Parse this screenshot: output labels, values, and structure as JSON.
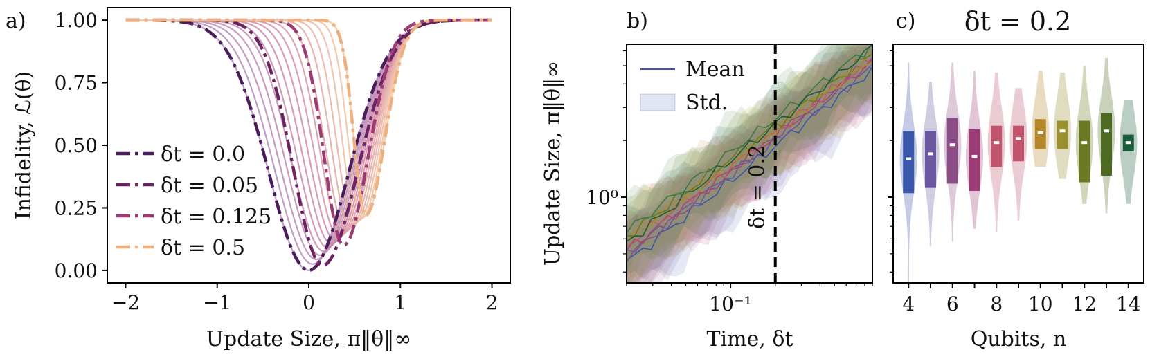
{
  "chart_data": [
    {
      "panel": "a)",
      "type": "line",
      "title": "",
      "xlabel": "Update Size, π‖θ‖∞",
      "ylabel": "Infidelity, ℒ(θ)",
      "xlim": [
        -2.2,
        2.2
      ],
      "ylim": [
        -0.05,
        1.05
      ],
      "xticks": [
        "−2",
        "−1",
        "0",
        "1",
        "2"
      ],
      "xtick_values": [
        -2,
        -1,
        0,
        1,
        2
      ],
      "yticks": [
        "0.00",
        "0.25",
        "0.50",
        "0.75",
        "1.00"
      ],
      "ytick_values": [
        0,
        0.25,
        0.5,
        0.75,
        1.0
      ],
      "legend_position": "lower-left",
      "background_series_count": 16,
      "series": [
        {
          "name": "δt = 0.0",
          "color": "#4a1c5a",
          "center": 0.0,
          "width_left": 0.62,
          "width_right": 0.62,
          "floor": 0.0
        },
        {
          "name": "δt = 0.05",
          "color": "#6b2363",
          "center": 0.15,
          "width_left": 0.45,
          "width_right": 0.55,
          "floor": 0.02
        },
        {
          "name": "δt = 0.125",
          "color": "#9b3b73",
          "center": 0.38,
          "width_left": 0.3,
          "width_right": 0.38,
          "floor": 0.1
        },
        {
          "name": "δt = 0.5",
          "color": "#eeb07e",
          "center": 0.62,
          "width_left": 0.18,
          "width_right": 0.3,
          "floor": 0.22
        }
      ]
    },
    {
      "panel": "b)",
      "type": "line",
      "title": "",
      "xlabel": "Time, δt",
      "ylabel": "Update Size, π‖θ‖∞",
      "xscale": "log",
      "yscale": "log",
      "xlim": [
        0.02,
        0.9
      ],
      "ylim": [
        0.35,
        6.5
      ],
      "xtick_label": "10⁻¹",
      "xtick_value": 0.1,
      "ytick_label": "10⁰",
      "ytick_value": 1.0,
      "vline": {
        "x": 0.2,
        "label": "δt = 0.2"
      },
      "legend": {
        "mean_label": "Mean",
        "std_label": "Std.",
        "position": "top-left"
      },
      "series": [
        {
          "color": "#3a56a8",
          "y_start": 0.45,
          "slope": 0.62
        },
        {
          "color": "#6b57a0",
          "y_start": 0.5,
          "slope": 0.6
        },
        {
          "color": "#8b4d86",
          "y_start": 0.48,
          "slope": 0.64
        },
        {
          "color": "#a9456c",
          "y_start": 0.52,
          "slope": 0.61
        },
        {
          "color": "#c0556d",
          "y_start": 0.55,
          "slope": 0.6
        },
        {
          "color": "#b5872a",
          "y_start": 0.6,
          "slope": 0.58
        },
        {
          "color": "#9a9030",
          "y_start": 0.58,
          "slope": 0.6
        },
        {
          "color": "#6a7a22",
          "y_start": 0.62,
          "slope": 0.59
        },
        {
          "color": "#3b7a3a",
          "y_start": 0.66,
          "slope": 0.6
        },
        {
          "color": "#1a5c3a",
          "y_start": 0.57,
          "slope": 0.63
        }
      ]
    },
    {
      "panel": "c)",
      "type": "violin",
      "title": "δt = 0.2",
      "xlabel": "Qubits, n",
      "ylabel": "",
      "categories": [
        4,
        5,
        6,
        7,
        8,
        9,
        10,
        11,
        12,
        13,
        14
      ],
      "xticks": [
        "4",
        "6",
        "8",
        "10",
        "12",
        "14"
      ],
      "xtick_values": [
        4,
        6,
        8,
        10,
        12,
        14
      ],
      "ylim": [
        0.35,
        6.5
      ],
      "yscale": "log",
      "colors": [
        "#3a56a8",
        "#6b57a0",
        "#8b4d86",
        "#9b3b73",
        "#c0556d",
        "#c0556d",
        "#b5872a",
        "#9a9030",
        "#6a7a22",
        "#4e6a22",
        "#1a5c3a"
      ],
      "medians": [
        1.6,
        1.7,
        1.9,
        1.65,
        1.95,
        2.05,
        2.2,
        2.25,
        1.95,
        2.25,
        1.95
      ],
      "q1": [
        1.05,
        1.12,
        1.18,
        1.08,
        1.45,
        1.55,
        1.8,
        1.8,
        1.2,
        1.3,
        1.75
      ],
      "q3": [
        2.25,
        2.25,
        2.65,
        2.3,
        2.4,
        2.4,
        2.6,
        2.55,
        2.55,
        2.8,
        2.15
      ],
      "mins": [
        0.35,
        0.55,
        0.58,
        0.68,
        0.65,
        0.75,
        1.45,
        1.25,
        0.92,
        0.82,
        0.92
      ],
      "maxs": [
        5.2,
        4.1,
        5.2,
        4.7,
        4.6,
        3.8,
        4.7,
        4.6,
        5.0,
        5.5,
        3.3
      ]
    }
  ]
}
